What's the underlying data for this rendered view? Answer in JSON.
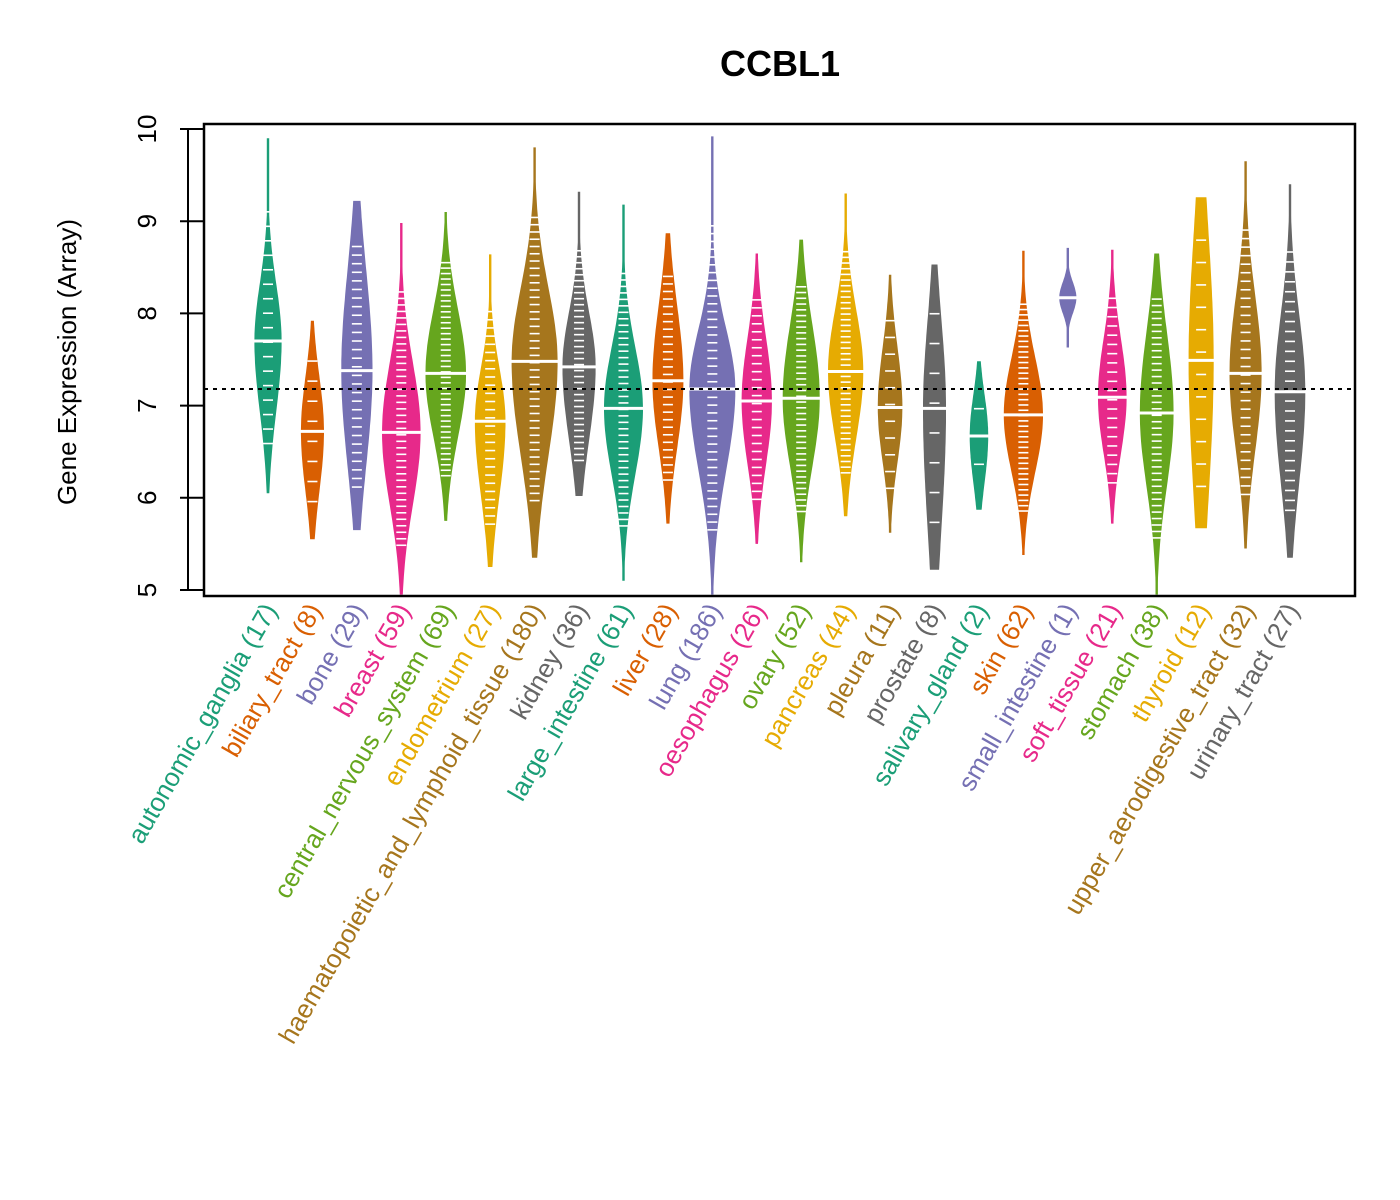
{
  "chart_data": {
    "type": "violin",
    "title": "CCBL1",
    "xlabel": "",
    "ylabel": "Gene Expression (Array)",
    "ylim": [
      5,
      10
    ],
    "yticks": [
      5,
      6,
      7,
      8,
      9,
      10
    ],
    "reference_line": 7.18,
    "grid": false,
    "legend": "none",
    "categories": [
      {
        "name": "autonomic_ganglia",
        "n": 17,
        "label": "autonomic_ganglia (17)",
        "color": "#1B9E77",
        "min": 6.05,
        "max": 9.9,
        "median": 7.7,
        "q1": 7.2,
        "q3": 8.1
      },
      {
        "name": "biliary_tract",
        "n": 8,
        "label": "biliary_tract (8)",
        "color": "#D95F02",
        "min": 5.55,
        "max": 7.92,
        "median": 6.72,
        "q1": 6.3,
        "q3": 7.1
      },
      {
        "name": "bone",
        "n": 29,
        "label": "bone (29)",
        "color": "#7570B3",
        "min": 5.65,
        "max": 9.22,
        "median": 7.38,
        "q1": 6.7,
        "q3": 8.1
      },
      {
        "name": "breast",
        "n": 59,
        "label": "breast (59)",
        "color": "#E7298A",
        "min": 4.95,
        "max": 8.98,
        "median": 6.71,
        "q1": 6.2,
        "q3": 7.2
      },
      {
        "name": "central_nervous_system",
        "n": 69,
        "label": "central_nervous_system (69)",
        "color": "#66A61E",
        "min": 5.75,
        "max": 9.1,
        "median": 7.35,
        "q1": 6.9,
        "q3": 7.8
      },
      {
        "name": "endometrium",
        "n": 27,
        "label": "endometrium (27)",
        "color": "#E6AB02",
        "min": 5.25,
        "max": 8.64,
        "median": 6.83,
        "q1": 6.3,
        "q3": 7.2
      },
      {
        "name": "haematopoietic_and_lymphoid_tissue",
        "n": 180,
        "label": "haematopoietic_and_lymphoid_tissue (180)",
        "color": "#A6761D",
        "min": 5.35,
        "max": 9.8,
        "median": 7.48,
        "q1": 6.8,
        "q3": 8.0
      },
      {
        "name": "kidney",
        "n": 36,
        "label": "kidney (36)",
        "color": "#666666",
        "min": 6.02,
        "max": 9.32,
        "median": 7.42,
        "q1": 6.9,
        "q3": 7.8
      },
      {
        "name": "large_intestine",
        "n": 61,
        "label": "large_intestine (61)",
        "color": "#1B9E77",
        "min": 5.1,
        "max": 9.18,
        "median": 6.97,
        "q1": 6.5,
        "q3": 7.4
      },
      {
        "name": "liver",
        "n": 28,
        "label": "liver (28)",
        "color": "#D95F02",
        "min": 5.72,
        "max": 8.87,
        "median": 7.27,
        "q1": 6.8,
        "q3": 7.8
      },
      {
        "name": "lung",
        "n": 186,
        "label": "lung (186)",
        "color": "#7570B3",
        "min": 4.95,
        "max": 9.92,
        "median": 7.18,
        "q1": 6.6,
        "q3": 7.6
      },
      {
        "name": "oesophagus",
        "n": 26,
        "label": "oesophagus (26)",
        "color": "#E7298A",
        "min": 5.5,
        "max": 8.65,
        "median": 7.05,
        "q1": 6.6,
        "q3": 7.5
      },
      {
        "name": "ovary",
        "n": 52,
        "label": "ovary (52)",
        "color": "#66A61E",
        "min": 5.3,
        "max": 8.8,
        "median": 7.08,
        "q1": 6.6,
        "q3": 7.6
      },
      {
        "name": "pancreas",
        "n": 44,
        "label": "pancreas (44)",
        "color": "#E6AB02",
        "min": 5.8,
        "max": 9.3,
        "median": 7.37,
        "q1": 6.9,
        "q3": 7.8
      },
      {
        "name": "pleura",
        "n": 11,
        "label": "pleura (11)",
        "color": "#A6761D",
        "min": 5.62,
        "max": 8.42,
        "median": 6.98,
        "q1": 6.6,
        "q3": 7.4
      },
      {
        "name": "prostate",
        "n": 8,
        "label": "prostate (8)",
        "color": "#666666",
        "min": 5.22,
        "max": 8.53,
        "median": 6.97,
        "q1": 6.1,
        "q3": 7.6
      },
      {
        "name": "salivary_gland",
        "n": 2,
        "label": "salivary_gland (2)",
        "color": "#1B9E77",
        "min": 5.87,
        "max": 7.48,
        "median": 6.67,
        "q1": 6.35,
        "q3": 6.95
      },
      {
        "name": "skin",
        "n": 62,
        "label": "skin (62)",
        "color": "#D95F02",
        "min": 5.38,
        "max": 8.68,
        "median": 6.9,
        "q1": 6.5,
        "q3": 7.3
      },
      {
        "name": "small_intestine",
        "n": 1,
        "label": "small_intestine (1)",
        "color": "#7570B3",
        "min": 7.63,
        "max": 8.71,
        "median": 8.17,
        "q1": 8.17,
        "q3": 8.17
      },
      {
        "name": "soft_tissue",
        "n": 21,
        "label": "soft_tissue (21)",
        "color": "#E7298A",
        "min": 5.72,
        "max": 8.69,
        "median": 7.09,
        "q1": 6.7,
        "q3": 7.5
      },
      {
        "name": "stomach",
        "n": 38,
        "label": "stomach (38)",
        "color": "#66A61E",
        "min": 4.95,
        "max": 8.65,
        "median": 6.92,
        "q1": 6.4,
        "q3": 7.5
      },
      {
        "name": "thyroid",
        "n": 12,
        "label": "thyroid (12)",
        "color": "#E6AB02",
        "min": 5.67,
        "max": 9.26,
        "median": 7.49,
        "q1": 6.5,
        "q3": 8.4
      },
      {
        "name": "upper_aerodigestive_tract",
        "n": 32,
        "label": "upper_aerodigestive_tract (32)",
        "color": "#A6761D",
        "min": 5.45,
        "max": 9.65,
        "median": 7.35,
        "q1": 6.8,
        "q3": 7.9
      },
      {
        "name": "urinary_tract",
        "n": 27,
        "label": "urinary_tract (27)",
        "color": "#666666",
        "min": 5.35,
        "max": 9.4,
        "median": 7.15,
        "q1": 6.5,
        "q3": 7.7
      }
    ]
  }
}
